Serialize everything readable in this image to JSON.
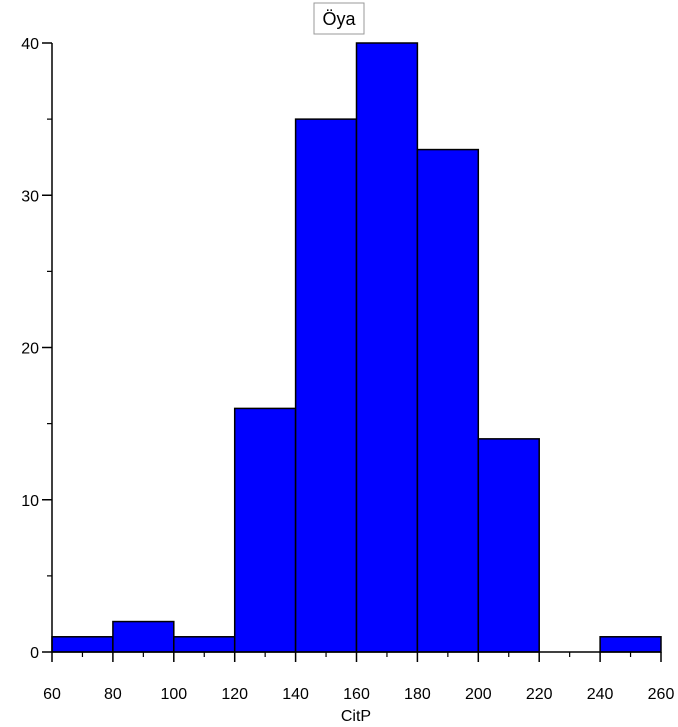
{
  "chart_data": {
    "type": "bar",
    "title": "Öya",
    "xlabel": "CitP",
    "ylabel": "",
    "bin_edges": [
      60,
      80,
      100,
      120,
      140,
      160,
      180,
      200,
      220,
      240,
      260
    ],
    "values": [
      1,
      2,
      1,
      16,
      35,
      40,
      33,
      14,
      0,
      1
    ],
    "xlim": [
      60,
      260
    ],
    "ylim": [
      0,
      40
    ],
    "x_ticks": [
      60,
      80,
      100,
      120,
      140,
      160,
      180,
      200,
      220,
      240,
      260
    ],
    "y_ticks": [
      0,
      10,
      20,
      30,
      40
    ],
    "grid": false,
    "bar_color": "#0000ff",
    "edge_color": "#000000"
  }
}
